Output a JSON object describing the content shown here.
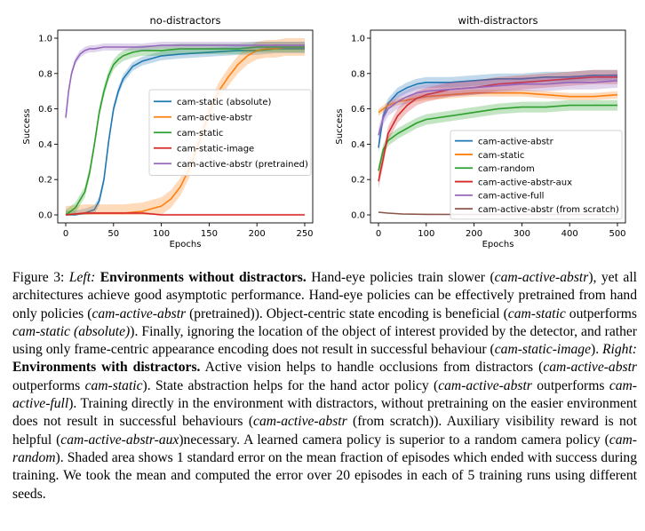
{
  "chart_data": [
    {
      "type": "line",
      "title": "no-distractors",
      "xlabel": "Epochs",
      "ylabel": "Success",
      "xlim": [
        0,
        250
      ],
      "ylim": [
        0,
        1
      ],
      "xticks": [
        0,
        50,
        100,
        150,
        200,
        250
      ],
      "yticks": [
        0.0,
        0.2,
        0.4,
        0.6,
        0.8,
        1.0
      ],
      "tick_labels_x": [
        "0",
        "50",
        "100",
        "150",
        "200",
        "250"
      ],
      "tick_labels_y": [
        "0.0",
        "0.2",
        "0.4",
        "0.6",
        "0.8",
        "1.0"
      ],
      "grid": false,
      "legend_position": "center-right",
      "shaded_area": "1 standard error",
      "series": [
        {
          "name": "cam-static (absolute)",
          "color": "#1f77b4",
          "x": [
            0,
            10,
            20,
            30,
            35,
            40,
            45,
            50,
            55,
            60,
            70,
            80,
            100,
            120,
            150,
            180,
            200,
            220,
            250
          ],
          "y": [
            0.0,
            0.0,
            0.01,
            0.03,
            0.08,
            0.2,
            0.42,
            0.6,
            0.7,
            0.77,
            0.84,
            0.87,
            0.9,
            0.91,
            0.92,
            0.93,
            0.93,
            0.94,
            0.94
          ],
          "err": 0.025
        },
        {
          "name": "cam-active-abstr",
          "color": "#ff7f0e",
          "x": [
            0,
            20,
            40,
            60,
            80,
            100,
            110,
            120,
            130,
            140,
            150,
            160,
            170,
            180,
            190,
            200,
            210,
            220,
            230,
            240,
            250
          ],
          "y": [
            0.0,
            0.01,
            0.01,
            0.01,
            0.02,
            0.05,
            0.09,
            0.16,
            0.27,
            0.42,
            0.58,
            0.7,
            0.78,
            0.85,
            0.9,
            0.93,
            0.94,
            0.94,
            0.95,
            0.95,
            0.95
          ],
          "err": 0.05
        },
        {
          "name": "cam-static",
          "color": "#2ca02c",
          "x": [
            0,
            10,
            20,
            25,
            30,
            35,
            40,
            45,
            50,
            55,
            60,
            70,
            80,
            100,
            120,
            150,
            180,
            200,
            220,
            250
          ],
          "y": [
            0.0,
            0.04,
            0.13,
            0.24,
            0.4,
            0.58,
            0.7,
            0.79,
            0.85,
            0.88,
            0.9,
            0.92,
            0.93,
            0.93,
            0.94,
            0.94,
            0.94,
            0.95,
            0.95,
            0.95
          ],
          "err": 0.03
        },
        {
          "name": "cam-static-image",
          "color": "#d62728",
          "x": [
            0,
            20,
            40,
            60,
            80,
            100,
            120,
            150,
            180,
            200,
            220,
            250
          ],
          "y": [
            0.0,
            0.01,
            0.01,
            0.01,
            0.01,
            0.0,
            0.0,
            0.0,
            0.0,
            0.0,
            0.0,
            0.0
          ],
          "err": 0.006
        },
        {
          "name": "cam-active-abstr (pretrained)",
          "color": "#9467bd",
          "x": [
            0,
            3,
            6,
            10,
            15,
            20,
            25,
            30,
            40,
            50,
            60,
            80,
            100,
            120,
            150,
            180,
            200,
            220,
            250
          ],
          "y": [
            0.55,
            0.7,
            0.8,
            0.87,
            0.91,
            0.93,
            0.94,
            0.94,
            0.95,
            0.95,
            0.95,
            0.95,
            0.96,
            0.96,
            0.96,
            0.96,
            0.96,
            0.96,
            0.96
          ],
          "err": 0.02
        }
      ]
    },
    {
      "type": "line",
      "title": "with-distractors",
      "xlabel": "Epochs",
      "ylabel": "Success",
      "xlim": [
        0,
        500
      ],
      "ylim": [
        0,
        1
      ],
      "xticks": [
        0,
        100,
        200,
        300,
        400,
        500
      ],
      "yticks": [
        0.0,
        0.2,
        0.4,
        0.6,
        0.8,
        1.0
      ],
      "tick_labels_x": [
        "0",
        "100",
        "200",
        "300",
        "400",
        "500"
      ],
      "tick_labels_y": [
        "0.0",
        "0.2",
        "0.4",
        "0.6",
        "0.8",
        "1.0"
      ],
      "grid": false,
      "legend_position": "lower-right",
      "shaded_area": "1 standard error",
      "series": [
        {
          "name": "cam-active-abstr",
          "color": "#1f77b4",
          "x": [
            0,
            10,
            20,
            40,
            60,
            80,
            100,
            150,
            200,
            250,
            300,
            350,
            400,
            450,
            500
          ],
          "y": [
            0.38,
            0.56,
            0.63,
            0.69,
            0.72,
            0.74,
            0.75,
            0.75,
            0.76,
            0.77,
            0.77,
            0.78,
            0.78,
            0.79,
            0.79
          ],
          "err": 0.03
        },
        {
          "name": "cam-static",
          "color": "#ff7f0e",
          "x": [
            0,
            10,
            20,
            40,
            60,
            80,
            100,
            150,
            200,
            250,
            300,
            350,
            400,
            450,
            500
          ],
          "y": [
            0.58,
            0.6,
            0.62,
            0.64,
            0.65,
            0.66,
            0.67,
            0.68,
            0.69,
            0.69,
            0.69,
            0.68,
            0.67,
            0.67,
            0.68
          ],
          "err": 0.02
        },
        {
          "name": "cam-random",
          "color": "#2ca02c",
          "x": [
            0,
            10,
            20,
            40,
            60,
            80,
            100,
            150,
            200,
            250,
            300,
            350,
            400,
            450,
            500
          ],
          "y": [
            0.25,
            0.37,
            0.42,
            0.46,
            0.49,
            0.52,
            0.54,
            0.56,
            0.58,
            0.6,
            0.61,
            0.61,
            0.62,
            0.62,
            0.62
          ],
          "err": 0.03
        },
        {
          "name": "cam-active-abstr-aux",
          "color": "#d62728",
          "x": [
            0,
            10,
            20,
            40,
            60,
            80,
            100,
            150,
            200,
            250,
            300,
            350,
            400,
            450,
            500
          ],
          "y": [
            0.19,
            0.32,
            0.46,
            0.56,
            0.62,
            0.66,
            0.68,
            0.71,
            0.72,
            0.74,
            0.75,
            0.76,
            0.77,
            0.78,
            0.78
          ],
          "err": 0.04
        },
        {
          "name": "cam-active-full",
          "color": "#9467bd",
          "x": [
            0,
            10,
            20,
            40,
            60,
            80,
            100,
            150,
            200,
            250,
            300,
            350,
            400,
            450,
            500
          ],
          "y": [
            0.45,
            0.55,
            0.6,
            0.64,
            0.67,
            0.69,
            0.7,
            0.71,
            0.72,
            0.73,
            0.74,
            0.74,
            0.75,
            0.75,
            0.76
          ],
          "err": 0.04
        },
        {
          "name": "cam-active-abstr (from scratch)",
          "color": "#8c564b",
          "x": [
            0,
            20,
            50,
            100,
            200,
            300,
            400,
            500
          ],
          "y": [
            0.015,
            0.01,
            0.005,
            0.003,
            0.002,
            0.002,
            0.002,
            0.002
          ],
          "err": 0.004
        }
      ]
    }
  ],
  "caption": {
    "figure_label": "Figure 3: ",
    "left_label": "Left:",
    "left_title": "Environments without distractors.",
    "t1": " Hand-eye policies train slower (",
    "e1": "cam-active-abstr",
    "t2": "), yet all architectures achieve good asymptotic performance. Hand-eye policies can be effectively pretrained from hand only policies (",
    "e2": "cam-active-abstr",
    "t3": " (pretrained)). Object-centric state encoding is beneficial (",
    "e3": "cam-static",
    "t4": " outperforms ",
    "e4": "cam-static (absolute)",
    "t5": "). Finally, ignoring the location of the object of interest provided by the detector, and rather using only frame-centric appearance encoding does not result in successful behaviour (",
    "e5": "cam-static-image",
    "t6": "). ",
    "right_label": "Right:",
    "right_title": "Environments with distractors.",
    "t7": " Active vision helps to handle occlusions from distractors (",
    "e6": "cam-active-abstr",
    "t8": " outperforms ",
    "e7": "cam-static",
    "t9": "). State abstraction helps for the hand actor policy (",
    "e8": "cam-active-abstr",
    "t10": " outperforms ",
    "e9": "cam-active-full",
    "t11": "). Training directly in the environment with distractors, without pretraining on the easier environment does not result in successful behaviours (",
    "e10": "cam-active-abstr",
    "t12": " (from scratch)). Auxiliary visibility reward is not helpful (",
    "e11": "cam-active-abstr-aux",
    "t13": ")necessary. A learned camera policy is superior to a random camera policy (",
    "e12": "cam-random",
    "t14": "). Shaded area shows 1 standard error on the mean fraction of episodes which ended with success during training. We took the mean and computed the error over 20 episodes in each of 5 training runs using different seeds."
  }
}
